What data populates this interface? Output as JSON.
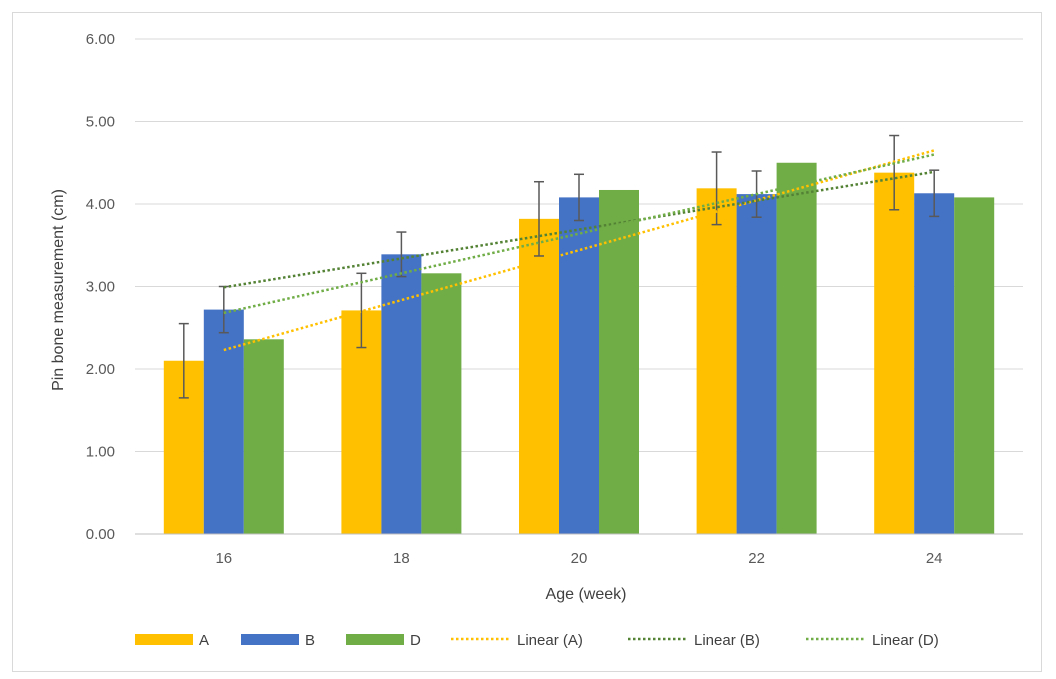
{
  "chart_data": {
    "type": "bar",
    "categories": [
      "16",
      "18",
      "20",
      "22",
      "24"
    ],
    "xlabel": "Age (week)",
    "ylabel": "Pin bone measurement (cm)",
    "ylim": [
      0,
      6
    ],
    "y_ticks": [
      "0.00",
      "1.00",
      "2.00",
      "3.00",
      "4.00",
      "5.00",
      "6.00"
    ],
    "grid": true,
    "legend_position": "bottom",
    "series": [
      {
        "name": "A",
        "color": "#FFC000",
        "values": [
          2.1,
          2.71,
          3.82,
          4.19,
          4.38
        ],
        "error": [
          0.45,
          0.45,
          0.45,
          0.44,
          0.45
        ]
      },
      {
        "name": "B",
        "color": "#4472C4",
        "values": [
          2.72,
          3.39,
          4.08,
          4.12,
          4.13
        ],
        "error": [
          0.28,
          0.27,
          0.28,
          0.28,
          0.28
        ]
      },
      {
        "name": "D",
        "color": "#70AD47",
        "values": [
          2.36,
          3.16,
          4.17,
          4.5,
          4.08
        ],
        "error": null
      }
    ],
    "trendlines": [
      {
        "name": "Linear (A)",
        "color": "#FFC000",
        "from": 2.23,
        "to": 4.65
      },
      {
        "name": "Linear (B)",
        "color": "#548235",
        "from": 2.99,
        "to": 4.39
      },
      {
        "name": "Linear (D)",
        "color": "#70AD47",
        "from": 2.68,
        "to": 4.6
      }
    ]
  }
}
